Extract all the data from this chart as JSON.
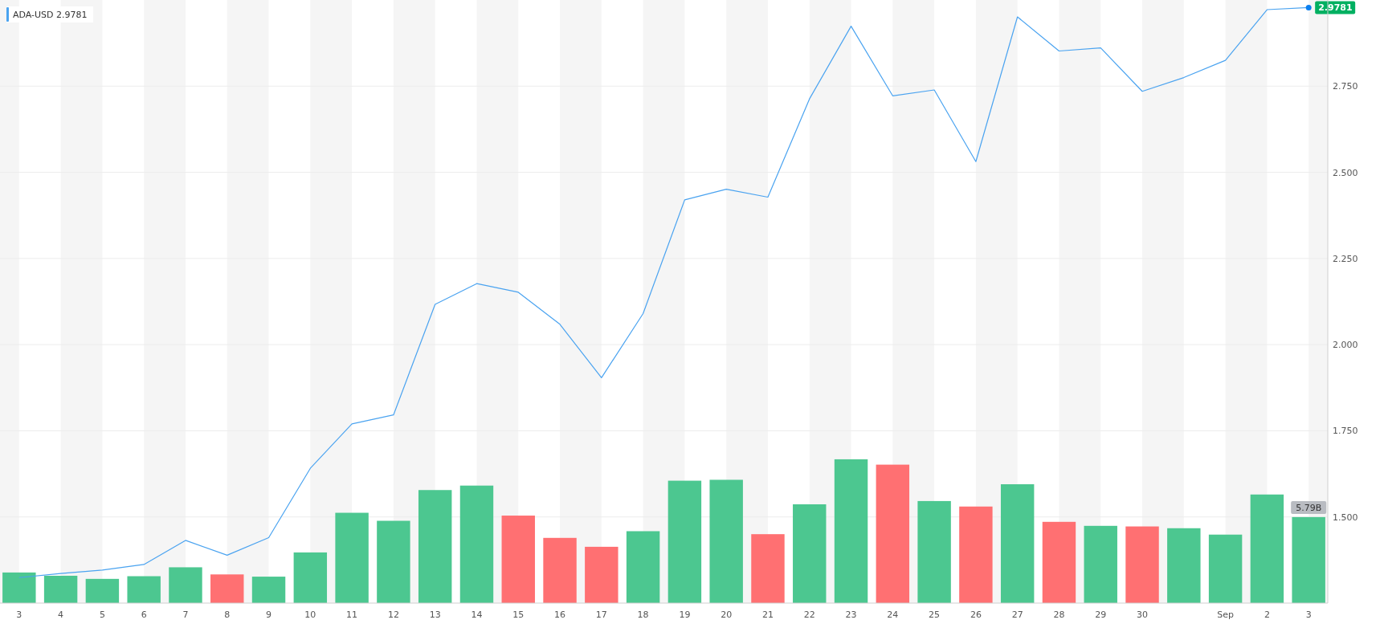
{
  "chart_data": {
    "type": "line",
    "categories": [
      "3",
      "4",
      "5",
      "6",
      "7",
      "8",
      "9",
      "10",
      "11",
      "12",
      "13",
      "14",
      "15",
      "16",
      "17",
      "18",
      "19",
      "20",
      "21",
      "22",
      "23",
      "24",
      "25",
      "26",
      "27",
      "28",
      "29",
      "30",
      null,
      "Sep",
      "2",
      "3"
    ],
    "series": [
      {
        "name": "ADA-USD",
        "color": "#4aa3f0",
        "values": [
          1.324,
          1.336,
          1.346,
          1.362,
          1.432,
          1.389,
          1.44,
          1.641,
          1.77,
          1.796,
          2.117,
          2.177,
          2.152,
          2.059,
          1.904,
          2.09,
          2.42,
          2.451,
          2.428,
          2.713,
          2.924,
          2.722,
          2.739,
          2.531,
          2.951,
          2.852,
          2.861,
          2.735,
          2.775,
          2.825,
          2.972,
          2.9781
        ],
        "value_labels": [
          null,
          null,
          null,
          null,
          null,
          null,
          null,
          null,
          null,
          null,
          null,
          null,
          null,
          null,
          null,
          null,
          null,
          null,
          null,
          null,
          null,
          null,
          null,
          null,
          null,
          null,
          null,
          null,
          null,
          null,
          null,
          "2.9781"
        ]
      },
      {
        "type": "bar",
        "axis": "y2",
        "value_labels": [
          null,
          null,
          null,
          null,
          null,
          null,
          null,
          null,
          null,
          null,
          null,
          null,
          null,
          null,
          null,
          null,
          null,
          null,
          null,
          null,
          null,
          null,
          null,
          null,
          null,
          null,
          null,
          null,
          null,
          null,
          null,
          "5.79B"
        ],
        "colors": [
          "#4cc790",
          "#4cc790",
          "#4cc790",
          "#4cc790",
          "#4cc790",
          "#ff7072",
          "#4cc790",
          "#4cc790",
          "#4cc790",
          "#4cc790",
          "#4cc790",
          "#4cc790",
          "#ff7072",
          "#ff7072",
          "#ff7072",
          "#4cc790",
          "#4cc790",
          "#4cc790",
          "#ff7072",
          "#4cc790",
          "#4cc790",
          "#ff7072",
          "#4cc790",
          "#ff7072",
          "#4cc790",
          "#ff7072",
          "#4cc790",
          "#ff7072",
          "#4cc790",
          "#4cc790",
          "#4cc790",
          "#4cc790"
        ],
        "values": [
          2.06,
          1.84,
          1.63,
          1.81,
          2.41,
          1.93,
          1.78,
          3.41,
          6.08,
          5.54,
          7.61,
          7.91,
          5.89,
          4.39,
          3.79,
          4.84,
          8.24,
          8.3,
          4.64,
          6.65,
          9.68,
          9.32,
          6.87,
          6.5,
          8.0,
          5.47,
          5.2,
          5.16,
          5.04,
          4.61,
          7.31,
          5.79
        ]
      }
    ],
    "y2lim": [
      0,
      40.6
    ],
    "ylim": [
      1.25,
      3.0
    ],
    "yticks": [
      {
        "value": 1.5,
        "label": "1.500"
      },
      {
        "value": 1.75,
        "label": "1.750"
      },
      {
        "value": 2.0,
        "label": "2.000"
      },
      {
        "value": 2.25,
        "label": "2.250"
      },
      {
        "value": 2.5,
        "label": "2.500"
      },
      {
        "value": 2.75,
        "label": "2.750"
      }
    ],
    "tick_labels": "xy",
    "grid": "y",
    "legend": "top left",
    "marker": "none"
  }
}
